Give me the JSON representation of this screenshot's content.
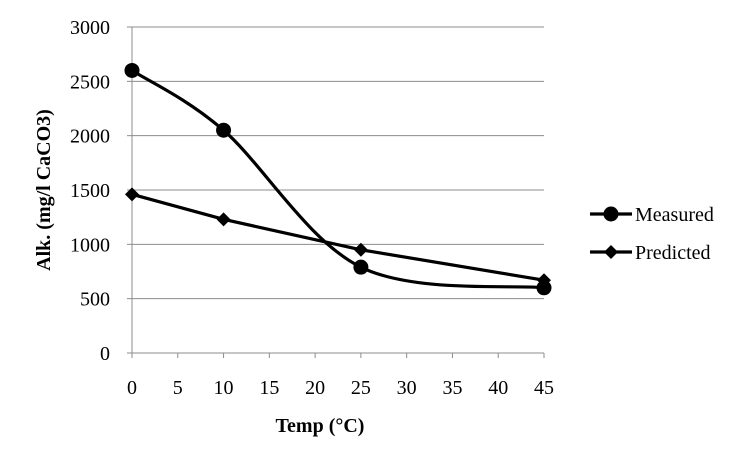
{
  "chart_data": {
    "type": "line",
    "title": "",
    "xlabel": "Temp (°C)",
    "ylabel": "Alk. (mg/l CaCO3)",
    "xlim": [
      0,
      45
    ],
    "ylim": [
      0,
      3000
    ],
    "xticks": [
      "0",
      "5",
      "10",
      "15",
      "20",
      "25",
      "30",
      "35",
      "40",
      "45"
    ],
    "yticks": [
      "0",
      "500",
      "1000",
      "1500",
      "2000",
      "2500",
      "3000"
    ],
    "grid": "horizontal",
    "legend_position": "right",
    "series": [
      {
        "name": "Measured",
        "marker": "circle",
        "smooth": true,
        "color": "#000000",
        "x": [
          0,
          10,
          25,
          45
        ],
        "y": [
          2600,
          2050,
          790,
          600
        ]
      },
      {
        "name": "Predicted",
        "marker": "diamond",
        "smooth": false,
        "color": "#000000",
        "x": [
          0,
          10,
          25,
          45
        ],
        "y": [
          1460,
          1230,
          950,
          670
        ]
      }
    ]
  }
}
